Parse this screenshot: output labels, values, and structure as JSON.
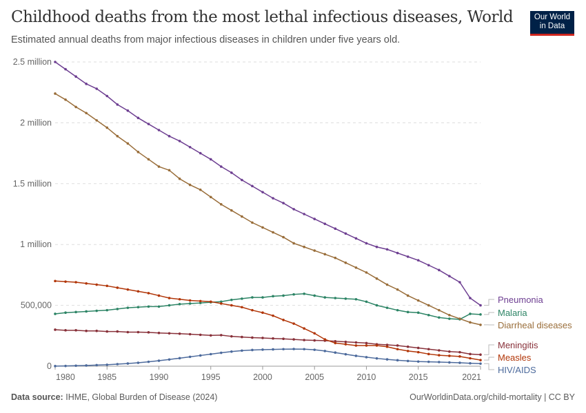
{
  "header": {
    "title": "Childhood deaths from the most lethal infectious diseases, World",
    "subtitle": "Estimated annual deaths from major infectious diseases in children under five years old.",
    "logo": "Our World in Data"
  },
  "footer": {
    "source_label": "Data source:",
    "source": "IHME, Global Burden of Disease (2024)",
    "right": "OurWorldinData.org/child-mortality | CC BY"
  },
  "chart_data": {
    "type": "line",
    "title": "Childhood deaths from the most lethal infectious diseases, World",
    "xlim": [
      1980,
      2021
    ],
    "ylim": [
      0,
      2500000
    ],
    "grid": "horizontal dashed",
    "legend": "right (line labels)",
    "x_ticks": [
      "1980",
      "1985",
      "1990",
      "1995",
      "2000",
      "2005",
      "2010",
      "2015",
      "2021"
    ],
    "y_ticks": [
      {
        "v": 0,
        "label": "0"
      },
      {
        "v": 500000,
        "label": "500,000"
      },
      {
        "v": 1000000,
        "label": "1 million"
      },
      {
        "v": 1500000,
        "label": "1.5 million"
      },
      {
        "v": 2000000,
        "label": "2 million"
      },
      {
        "v": 2500000,
        "label": "2.5 million"
      }
    ],
    "x": [
      1980,
      1981,
      1982,
      1983,
      1984,
      1985,
      1986,
      1987,
      1988,
      1989,
      1990,
      1991,
      1992,
      1993,
      1994,
      1995,
      1996,
      1997,
      1998,
      1999,
      2000,
      2001,
      2002,
      2003,
      2004,
      2005,
      2006,
      2007,
      2008,
      2009,
      2010,
      2011,
      2012,
      2013,
      2014,
      2015,
      2016,
      2017,
      2018,
      2019,
      2020,
      2021
    ],
    "unit_note": "values in millions",
    "series": [
      {
        "name": "Pneumonia",
        "color": "#6d3e91",
        "values": [
          2.5,
          2.44,
          2.38,
          2.32,
          2.28,
          2.22,
          2.15,
          2.1,
          2.04,
          1.99,
          1.94,
          1.89,
          1.85,
          1.8,
          1.75,
          1.7,
          1.64,
          1.59,
          1.53,
          1.48,
          1.43,
          1.38,
          1.34,
          1.29,
          1.25,
          1.21,
          1.17,
          1.13,
          1.09,
          1.05,
          1.01,
          0.98,
          0.96,
          0.93,
          0.9,
          0.87,
          0.83,
          0.79,
          0.74,
          0.69,
          0.56,
          0.5
        ]
      },
      {
        "name": "Malaria",
        "color": "#2c8465",
        "values": [
          0.43,
          0.44,
          0.445,
          0.45,
          0.455,
          0.46,
          0.47,
          0.48,
          0.485,
          0.49,
          0.49,
          0.5,
          0.51,
          0.515,
          0.52,
          0.525,
          0.53,
          0.545,
          0.555,
          0.565,
          0.565,
          0.575,
          0.58,
          0.59,
          0.595,
          0.58,
          0.565,
          0.56,
          0.555,
          0.55,
          0.53,
          0.5,
          0.48,
          0.46,
          0.445,
          0.44,
          0.42,
          0.4,
          0.39,
          0.385,
          0.43,
          0.425
        ]
      },
      {
        "name": "Diarrheal diseases",
        "color": "#996d39",
        "values": [
          2.24,
          2.19,
          2.13,
          2.08,
          2.02,
          1.96,
          1.89,
          1.83,
          1.76,
          1.7,
          1.64,
          1.61,
          1.54,
          1.49,
          1.45,
          1.39,
          1.33,
          1.28,
          1.23,
          1.18,
          1.14,
          1.1,
          1.06,
          1.01,
          0.98,
          0.95,
          0.92,
          0.89,
          0.85,
          0.81,
          0.77,
          0.72,
          0.67,
          0.63,
          0.58,
          0.54,
          0.5,
          0.46,
          0.42,
          0.39,
          0.36,
          0.34
        ]
      },
      {
        "name": "Meningitis",
        "color": "#883039",
        "values": [
          0.3,
          0.295,
          0.295,
          0.29,
          0.29,
          0.285,
          0.285,
          0.28,
          0.28,
          0.278,
          0.273,
          0.27,
          0.267,
          0.263,
          0.258,
          0.253,
          0.255,
          0.245,
          0.24,
          0.235,
          0.232,
          0.228,
          0.225,
          0.22,
          0.215,
          0.212,
          0.21,
          0.205,
          0.2,
          0.195,
          0.19,
          0.18,
          0.175,
          0.17,
          0.16,
          0.15,
          0.14,
          0.13,
          0.12,
          0.115,
          0.1,
          0.095
        ]
      },
      {
        "name": "Measles",
        "color": "#b13507",
        "values": [
          0.7,
          0.695,
          0.69,
          0.68,
          0.67,
          0.66,
          0.645,
          0.63,
          0.615,
          0.6,
          0.58,
          0.56,
          0.55,
          0.54,
          0.535,
          0.53,
          0.515,
          0.5,
          0.485,
          0.46,
          0.44,
          0.415,
          0.38,
          0.35,
          0.31,
          0.27,
          0.22,
          0.19,
          0.18,
          0.17,
          0.17,
          0.17,
          0.16,
          0.14,
          0.125,
          0.115,
          0.1,
          0.09,
          0.085,
          0.08,
          0.065,
          0.05
        ]
      },
      {
        "name": "HIV/AIDS",
        "color": "#4c6a9c",
        "values": [
          0.001,
          0.002,
          0.004,
          0.006,
          0.009,
          0.012,
          0.017,
          0.022,
          0.028,
          0.036,
          0.045,
          0.055,
          0.066,
          0.077,
          0.088,
          0.099,
          0.11,
          0.12,
          0.128,
          0.133,
          0.136,
          0.138,
          0.14,
          0.141,
          0.14,
          0.135,
          0.125,
          0.112,
          0.098,
          0.085,
          0.074,
          0.064,
          0.056,
          0.049,
          0.043,
          0.038,
          0.036,
          0.034,
          0.031,
          0.028,
          0.024,
          0.021
        ]
      }
    ]
  }
}
